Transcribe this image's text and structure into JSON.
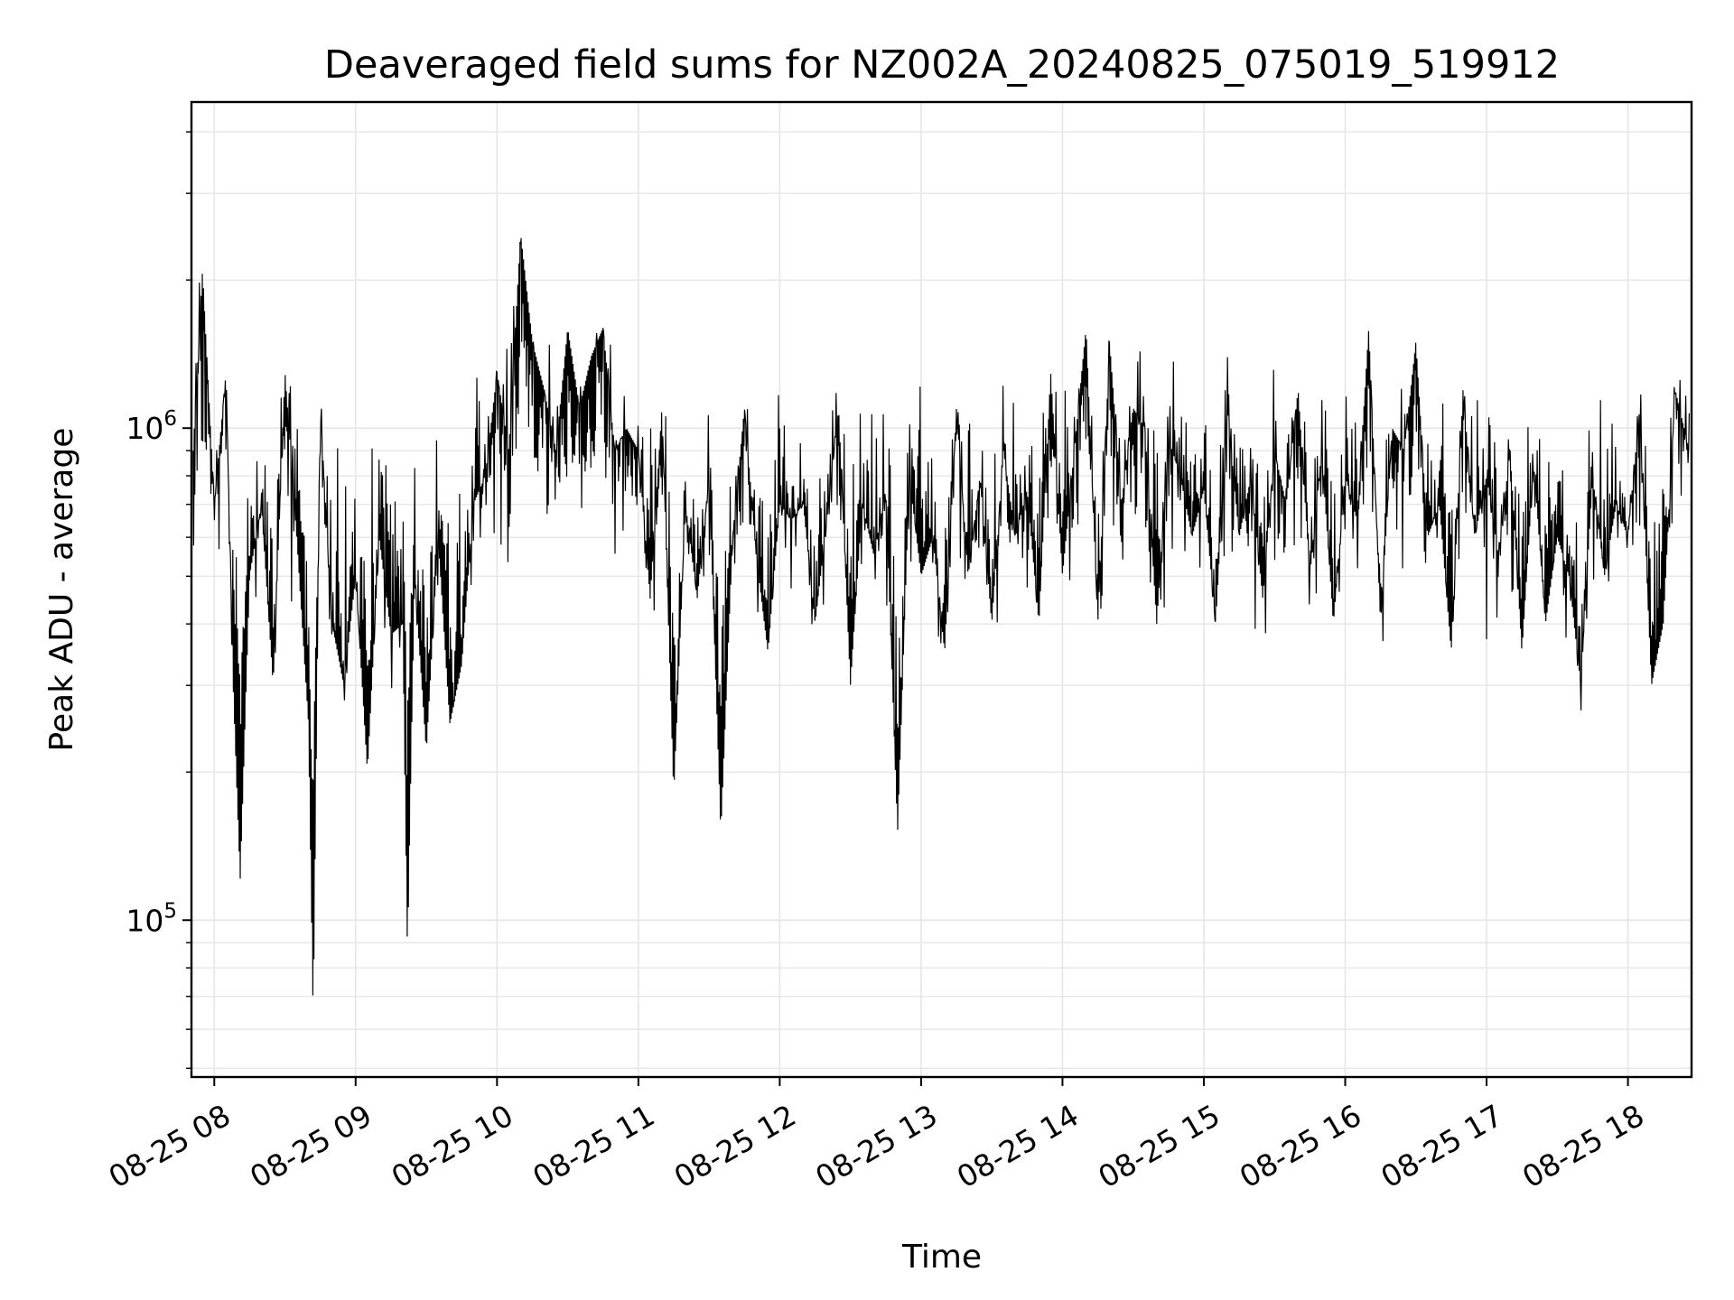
{
  "chart_data": {
    "type": "line",
    "title": "Deaveraged field sums for NZ002A_20240825_075019_519912",
    "xlabel": "Time",
    "ylabel": "Peak ADU - average",
    "yscale": "log",
    "xlim": [
      "2024-08-25T07:50:19",
      "2024-08-25T18:27:00"
    ],
    "ylim": [
      48000,
      4600000
    ],
    "grid": true,
    "x_tick_labels": [
      "08-25 08",
      "08-25 09",
      "08-25 10",
      "08-25 11",
      "08-25 12",
      "08-25 13",
      "08-25 14",
      "08-25 15",
      "08-25 16",
      "08-25 17",
      "08-25 18"
    ],
    "y_tick_labels": [
      {
        "base": "10",
        "exp": "5",
        "value": 100000
      },
      {
        "base": "10",
        "exp": "6",
        "value": 1000000
      }
    ],
    "line_color": "#000000",
    "series": [
      {
        "x": [
          "2024-08-25T07:51:00",
          "2024-08-25T07:55:00",
          "2024-08-25T08:00:00",
          "2024-08-25T08:05:00",
          "2024-08-25T08:08:00",
          "2024-08-25T08:11:00",
          "2024-08-25T08:15:00",
          "2024-08-25T08:20:00",
          "2024-08-25T08:25:00",
          "2024-08-25T08:30:00",
          "2024-08-25T08:35:00",
          "2024-08-25T08:40:00",
          "2024-08-25T08:42:00",
          "2024-08-25T08:45:00",
          "2024-08-25T08:50:00",
          "2024-08-25T08:55:00",
          "2024-08-25T09:00:00",
          "2024-08-25T09:05:00",
          "2024-08-25T09:10:00",
          "2024-08-25T09:15:00",
          "2024-08-25T09:20:00",
          "2024-08-25T09:22:00",
          "2024-08-25T09:25:00",
          "2024-08-25T09:30:00",
          "2024-08-25T09:35:00",
          "2024-08-25T09:40:00",
          "2024-08-25T09:45:00",
          "2024-08-25T09:50:00",
          "2024-08-25T09:55:00",
          "2024-08-25T10:00:00",
          "2024-08-25T10:05:00",
          "2024-08-25T10:10:00",
          "2024-08-25T10:15:00",
          "2024-08-25T10:20:00",
          "2024-08-25T10:25:00",
          "2024-08-25T10:30:00",
          "2024-08-25T10:35:00",
          "2024-08-25T10:40:00",
          "2024-08-25T10:45:00",
          "2024-08-25T10:50:00",
          "2024-08-25T10:55:00",
          "2024-08-25T11:00:00",
          "2024-08-25T11:05:00",
          "2024-08-25T11:10:00",
          "2024-08-25T11:15:00",
          "2024-08-25T11:20:00",
          "2024-08-25T11:25:00",
          "2024-08-25T11:30:00",
          "2024-08-25T11:35:00",
          "2024-08-25T11:40:00",
          "2024-08-25T11:45:00",
          "2024-08-25T11:50:00",
          "2024-08-25T11:55:00",
          "2024-08-25T12:00:00",
          "2024-08-25T12:05:00",
          "2024-08-25T12:10:00",
          "2024-08-25T12:15:00",
          "2024-08-25T12:20:00",
          "2024-08-25T12:25:00",
          "2024-08-25T12:30:00",
          "2024-08-25T12:35:00",
          "2024-08-25T12:40:00",
          "2024-08-25T12:45:00",
          "2024-08-25T12:50:00",
          "2024-08-25T12:55:00",
          "2024-08-25T13:00:00",
          "2024-08-25T13:05:00",
          "2024-08-25T13:10:00",
          "2024-08-25T13:15:00",
          "2024-08-25T13:20:00",
          "2024-08-25T13:25:00",
          "2024-08-25T13:30:00",
          "2024-08-25T13:35:00",
          "2024-08-25T13:40:00",
          "2024-08-25T13:45:00",
          "2024-08-25T13:50:00",
          "2024-08-25T13:55:00",
          "2024-08-25T14:00:00",
          "2024-08-25T14:05:00",
          "2024-08-25T14:10:00",
          "2024-08-25T14:15:00",
          "2024-08-25T14:20:00",
          "2024-08-25T14:25:00",
          "2024-08-25T14:30:00",
          "2024-08-25T14:35:00",
          "2024-08-25T14:40:00",
          "2024-08-25T14:45:00",
          "2024-08-25T14:50:00",
          "2024-08-25T14:55:00",
          "2024-08-25T15:00:00",
          "2024-08-25T15:05:00",
          "2024-08-25T15:10:00",
          "2024-08-25T15:15:00",
          "2024-08-25T15:20:00",
          "2024-08-25T15:25:00",
          "2024-08-25T15:30:00",
          "2024-08-25T15:35:00",
          "2024-08-25T15:40:00",
          "2024-08-25T15:45:00",
          "2024-08-25T15:50:00",
          "2024-08-25T15:55:00",
          "2024-08-25T16:00:00",
          "2024-08-25T16:05:00",
          "2024-08-25T16:10:00",
          "2024-08-25T16:15:00",
          "2024-08-25T16:20:00",
          "2024-08-25T16:25:00",
          "2024-08-25T16:30:00",
          "2024-08-25T16:35:00",
          "2024-08-25T16:40:00",
          "2024-08-25T16:45:00",
          "2024-08-25T16:50:00",
          "2024-08-25T16:55:00",
          "2024-08-25T17:00:00",
          "2024-08-25T17:05:00",
          "2024-08-25T17:10:00",
          "2024-08-25T17:15:00",
          "2024-08-25T17:20:00",
          "2024-08-25T17:25:00",
          "2024-08-25T17:30:00",
          "2024-08-25T17:35:00",
          "2024-08-25T17:40:00",
          "2024-08-25T17:45:00",
          "2024-08-25T17:50:00",
          "2024-08-25T17:55:00",
          "2024-08-25T18:00:00",
          "2024-08-25T18:05:00",
          "2024-08-25T18:10:00",
          "2024-08-25T18:15:00",
          "2024-08-25T18:20:00",
          "2024-08-25T18:26:00"
        ],
        "y": [
          900000,
          2100000,
          700000,
          1300000,
          300000,
          120000,
          500000,
          700000,
          300000,
          1300000,
          600000,
          250000,
          62000,
          1100000,
          400000,
          300000,
          500000,
          200000,
          600000,
          380000,
          400000,
          85000,
          500000,
          220000,
          600000,
          250000,
          330000,
          700000,
          800000,
          1300000,
          900000,
          2500000,
          1500000,
          1200000,
          900000,
          1600000,
          1100000,
          1400000,
          1600000,
          900000,
          1000000,
          900000,
          450000,
          1100000,
          180000,
          700000,
          450000,
          800000,
          150000,
          600000,
          1100000,
          550000,
          350000,
          700000,
          650000,
          700000,
          400000,
          650000,
          1100000,
          300000,
          700000,
          550000,
          750000,
          150000,
          800000,
          500000,
          600000,
          350000,
          1100000,
          500000,
          800000,
          400000,
          900000,
          600000,
          750000,
          400000,
          1300000,
          500000,
          900000,
          1600000,
          400000,
          1500000,
          700000,
          1100000,
          1000000,
          400000,
          950000,
          800000,
          600000,
          750000,
          400000,
          1100000,
          600000,
          800000,
          450000,
          900000,
          700000,
          1200000,
          500000,
          900000,
          400000,
          800000,
          650000,
          1600000,
          400000,
          1000000,
          900000,
          1500000,
          600000,
          700000,
          350000,
          1200000,
          600000,
          800000,
          550000,
          900000,
          350000,
          850000,
          400000,
          600000,
          500000,
          300000,
          800000,
          500000,
          700000,
          600000,
          1100000,
          300000,
          400000,
          1200000,
          900000
        ]
      }
    ]
  }
}
